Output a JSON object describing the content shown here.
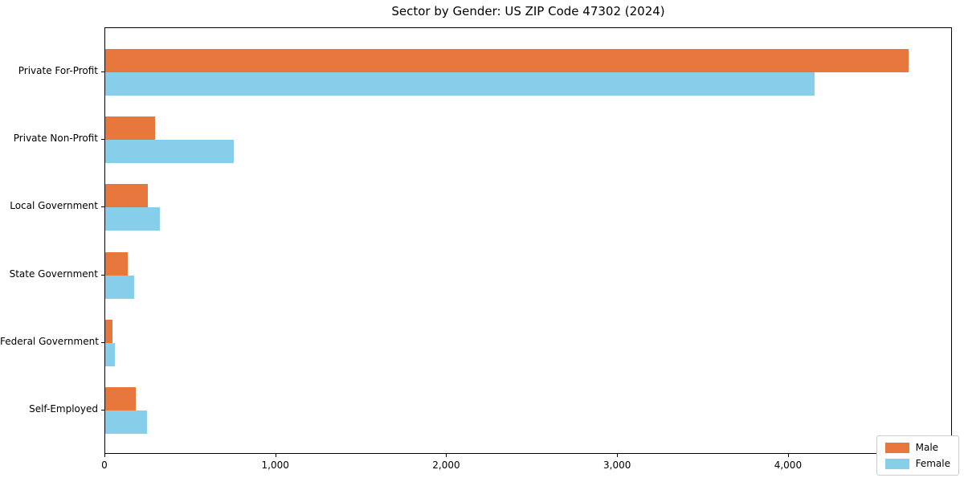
{
  "title": "Sector by Gender: US ZIP Code 47302 (2024)",
  "colors": {
    "male": "#e8773d",
    "female": "#87ceeb",
    "axis": "#000000",
    "legend_border": "#cccccc",
    "background": "#ffffff"
  },
  "legend": {
    "position": "lower right",
    "items": [
      {
        "label": "Male"
      },
      {
        "label": "Female"
      }
    ]
  },
  "chart_data": {
    "type": "bar",
    "orientation": "horizontal",
    "title": "Sector by Gender: US ZIP Code 47302 (2024)",
    "categories": [
      "Private For-Profit",
      "Private Non-Profit",
      "Local Government",
      "State Government",
      "Federal Government",
      "Self-Employed"
    ],
    "series": [
      {
        "name": "Male",
        "color": "#e8773d",
        "values": [
          4700,
          290,
          250,
          130,
          40,
          180
        ]
      },
      {
        "name": "Female",
        "color": "#87ceeb",
        "values": [
          4150,
          750,
          320,
          170,
          55,
          245
        ]
      }
    ],
    "xlabel": "",
    "ylabel": "",
    "xlim": [
      0,
      4950
    ],
    "xticks": [
      0,
      1000,
      2000,
      3000,
      4000
    ],
    "xtick_labels": [
      "0",
      "1,000",
      "2,000",
      "3,000",
      "4,000"
    ],
    "grid": false,
    "legend_position": "lower right"
  }
}
